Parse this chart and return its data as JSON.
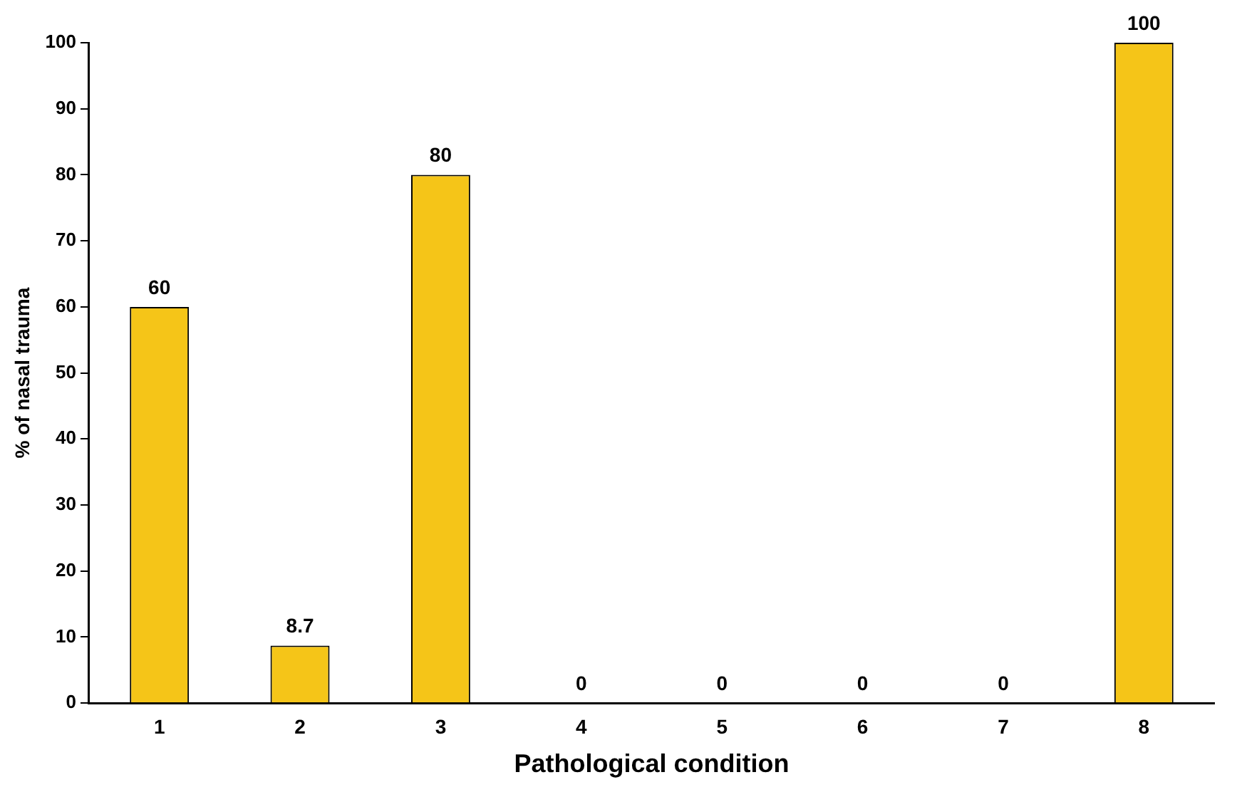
{
  "chart_data": {
    "type": "bar",
    "xlabel": "Pathological condition",
    "ylabel": "% of nasal trauma",
    "categories": [
      "1",
      "2",
      "3",
      "4",
      "5",
      "6",
      "7",
      "8"
    ],
    "values": [
      60,
      8.7,
      80,
      0,
      0,
      0,
      0,
      100
    ],
    "color": "#f5c518",
    "ylim": [
      0,
      100
    ],
    "yticks": [
      0,
      10,
      20,
      30,
      40,
      50,
      60,
      70,
      80,
      90,
      100
    ],
    "grid": false,
    "legend": false,
    "data_labels": true
  }
}
